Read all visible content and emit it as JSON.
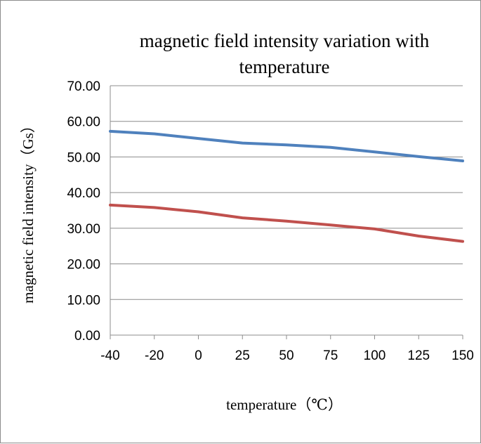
{
  "chart_data": {
    "type": "line",
    "title_lines": [
      "magnetic field intensity variation with",
      "temperature"
    ],
    "xlabel": "temperature（℃）",
    "ylabel": "magnetic field intensity（Gs）",
    "categories": [
      "-40",
      "-20",
      "0",
      "25",
      "50",
      "75",
      "100",
      "125",
      "150"
    ],
    "y_tick_labels": [
      "0.00",
      "10.00",
      "20.00",
      "30.00",
      "40.00",
      "50.00",
      "60.00",
      "70.00"
    ],
    "ylim": [
      0,
      70
    ],
    "grid": true,
    "legend": "none",
    "series": [
      {
        "color": "#4f81bd",
        "values": [
          57.2,
          56.5,
          55.2,
          53.9,
          53.4,
          52.7,
          51.4,
          50.1,
          48.9
        ]
      },
      {
        "color": "#c0504d",
        "values": [
          36.5,
          35.8,
          34.6,
          32.9,
          32.0,
          30.9,
          29.8,
          27.8,
          26.3
        ]
      }
    ]
  }
}
